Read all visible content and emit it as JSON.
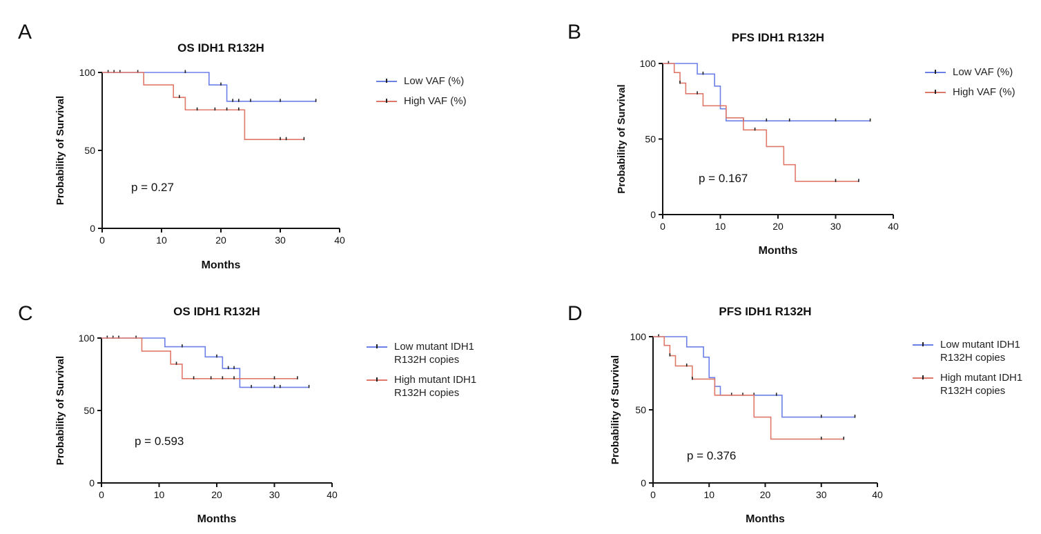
{
  "colors": {
    "low": "#6a7fe8",
    "high": "#e0786a",
    "axis": "#111111",
    "censor": "#222222"
  },
  "chart_data": [
    {
      "type": "line",
      "panel_label": "A",
      "title": "OS IDH1 R132H",
      "xlabel": "Months",
      "ylabel": "Probability of Survival",
      "xlim": [
        0,
        40
      ],
      "ylim": [
        0,
        100
      ],
      "xticks": [
        "0",
        "10",
        "20",
        "30",
        "40"
      ],
      "yticks": [
        "0",
        "50",
        "100"
      ],
      "grid": false,
      "legend_position": "right",
      "p_value": "p = 0.27",
      "series": [
        {
          "name": "Low VAF (%)",
          "color_key": "low",
          "steps": [
            [
              0,
              100
            ],
            [
              18,
              92
            ],
            [
              21,
              81.5
            ],
            [
              36,
              81.5
            ]
          ],
          "censored": [
            [
              1,
              100
            ],
            [
              2,
              100
            ],
            [
              3,
              100
            ],
            [
              6,
              100
            ],
            [
              14,
              100
            ],
            [
              20,
              92
            ],
            [
              22,
              81.5
            ],
            [
              23,
              81.5
            ],
            [
              25,
              81.5
            ],
            [
              30,
              81.5
            ],
            [
              36,
              81.5
            ]
          ]
        },
        {
          "name": "High VAF (%)",
          "color_key": "high",
          "steps": [
            [
              0,
              100
            ],
            [
              7,
              92
            ],
            [
              12,
              84
            ],
            [
              14,
              76
            ],
            [
              24,
              57
            ],
            [
              34,
              57
            ]
          ],
          "censored": [
            [
              13,
              84
            ],
            [
              16,
              76
            ],
            [
              19,
              76
            ],
            [
              21,
              76
            ],
            [
              23,
              76
            ],
            [
              30,
              57
            ],
            [
              31,
              57
            ],
            [
              34,
              57
            ]
          ]
        }
      ]
    },
    {
      "type": "line",
      "panel_label": "B",
      "title": "PFS IDH1 R132H",
      "xlabel": "Months",
      "ylabel": "Probability of Survival",
      "xlim": [
        0,
        40
      ],
      "ylim": [
        0,
        100
      ],
      "xticks": [
        "0",
        "10",
        "20",
        "30",
        "40"
      ],
      "yticks": [
        "0",
        "50",
        "100"
      ],
      "grid": false,
      "legend_position": "right",
      "p_value": "p = 0.167",
      "series": [
        {
          "name": "Low VAF (%)",
          "color_key": "low",
          "steps": [
            [
              0,
              100
            ],
            [
              6,
              93
            ],
            [
              9,
              85
            ],
            [
              10,
              70
            ],
            [
              11,
              62
            ],
            [
              36,
              62
            ]
          ],
          "censored": [
            [
              1,
              100
            ],
            [
              7,
              93
            ],
            [
              14,
              62
            ],
            [
              18,
              62
            ],
            [
              22,
              62
            ],
            [
              30,
              62
            ],
            [
              36,
              62
            ]
          ]
        },
        {
          "name": "High VAF (%)",
          "color_key": "high",
          "steps": [
            [
              0,
              100
            ],
            [
              2,
              94
            ],
            [
              3,
              87
            ],
            [
              4,
              80
            ],
            [
              7,
              72
            ],
            [
              11,
              64
            ],
            [
              14,
              56
            ],
            [
              18,
              45
            ],
            [
              21,
              33
            ],
            [
              23,
              22
            ],
            [
              34,
              22
            ]
          ],
          "censored": [
            [
              3,
              87
            ],
            [
              6,
              80
            ],
            [
              16,
              56
            ],
            [
              30,
              22
            ],
            [
              34,
              22
            ]
          ]
        }
      ]
    },
    {
      "type": "line",
      "panel_label": "C",
      "title": "OS IDH1 R132H",
      "xlabel": "Months",
      "ylabel": "Probability of Survival",
      "xlim": [
        0,
        40
      ],
      "ylim": [
        0,
        100
      ],
      "xticks": [
        "0",
        "10",
        "20",
        "30",
        "40"
      ],
      "yticks": [
        "0",
        "50",
        "100"
      ],
      "grid": false,
      "legend_position": "right",
      "p_value": "p = 0.593",
      "series": [
        {
          "name": "Low mutant IDH1 R132H copies",
          "color_key": "low",
          "steps": [
            [
              0,
              100
            ],
            [
              11,
              94
            ],
            [
              18,
              87
            ],
            [
              21,
              79
            ],
            [
              24,
              66
            ],
            [
              36,
              66
            ]
          ],
          "censored": [
            [
              1,
              100
            ],
            [
              2,
              100
            ],
            [
              3,
              100
            ],
            [
              6,
              100
            ],
            [
              14,
              94
            ],
            [
              20,
              87
            ],
            [
              22,
              79
            ],
            [
              23,
              79
            ],
            [
              26,
              66
            ],
            [
              30,
              66
            ],
            [
              31,
              66
            ],
            [
              36,
              66
            ]
          ]
        },
        {
          "name": "High mutant IDH1 R132H copies",
          "color_key": "high",
          "steps": [
            [
              0,
              100
            ],
            [
              7,
              91
            ],
            [
              12,
              82
            ],
            [
              14,
              72
            ],
            [
              34,
              72
            ]
          ],
          "censored": [
            [
              13,
              82
            ],
            [
              16,
              72
            ],
            [
              19,
              72
            ],
            [
              21,
              72
            ],
            [
              23,
              72
            ],
            [
              30,
              72
            ],
            [
              34,
              72
            ]
          ]
        }
      ]
    },
    {
      "type": "line",
      "panel_label": "D",
      "title": "PFS IDH1 R132H",
      "xlabel": "Months",
      "ylabel": "Probability of Survival",
      "xlim": [
        0,
        40
      ],
      "ylim": [
        0,
        100
      ],
      "xticks": [
        "0",
        "10",
        "20",
        "30",
        "40"
      ],
      "yticks": [
        "0",
        "50",
        "100"
      ],
      "grid": false,
      "legend_position": "right",
      "p_value": "p = 0.376",
      "series": [
        {
          "name": "Low mutant IDH1 R132H copies",
          "color_key": "low",
          "steps": [
            [
              0,
              100
            ],
            [
              6,
              93
            ],
            [
              9,
              86
            ],
            [
              10,
              72
            ],
            [
              11,
              66
            ],
            [
              12,
              60
            ],
            [
              23,
              45
            ],
            [
              36,
              45
            ]
          ],
          "censored": [
            [
              1,
              100
            ],
            [
              14,
              60
            ],
            [
              16,
              60
            ],
            [
              18,
              60
            ],
            [
              22,
              60
            ],
            [
              30,
              45
            ],
            [
              36,
              45
            ]
          ]
        },
        {
          "name": "High mutant IDH1 R132H copies",
          "color_key": "high",
          "steps": [
            [
              0,
              100
            ],
            [
              2,
              94
            ],
            [
              3,
              87
            ],
            [
              4,
              80
            ],
            [
              7,
              71
            ],
            [
              11,
              60
            ],
            [
              18,
              45
            ],
            [
              21,
              30
            ],
            [
              34,
              30
            ]
          ],
          "censored": [
            [
              3,
              87
            ],
            [
              6,
              80
            ],
            [
              7,
              71
            ],
            [
              30,
              30
            ],
            [
              34,
              30
            ]
          ]
        }
      ]
    }
  ]
}
